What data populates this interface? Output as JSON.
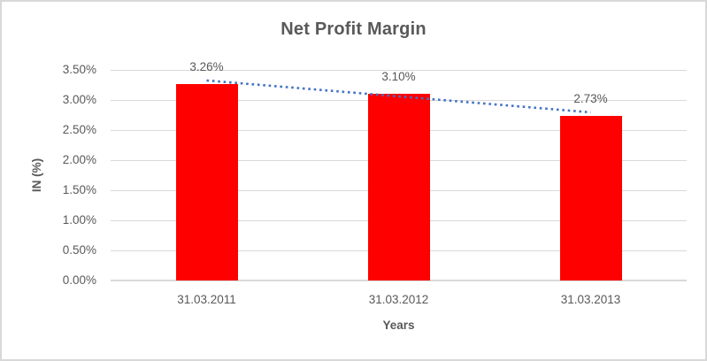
{
  "chart_data": {
    "type": "bar",
    "title": "Net Profit Margin",
    "xlabel": "Years",
    "ylabel": "IN (%)",
    "categories": [
      "31.03.2011",
      "31.03.2012",
      "31.03.2013"
    ],
    "values": [
      3.26,
      3.1,
      2.73
    ],
    "value_labels": [
      "3.26%",
      "3.10%",
      "2.73%"
    ],
    "yticks": [
      "0.00%",
      "0.50%",
      "1.00%",
      "1.50%",
      "2.00%",
      "2.50%",
      "3.00%",
      "3.50%"
    ],
    "ylim": [
      0,
      3.5
    ],
    "ytick_step": 0.5,
    "grid": true,
    "legend_position": "none",
    "bar_color": "#FF0000",
    "trendline": {
      "type": "linear",
      "style": "dotted",
      "color": "#4472C4"
    },
    "text_color": "#595959",
    "gridline_color": "#D9D9D9"
  }
}
